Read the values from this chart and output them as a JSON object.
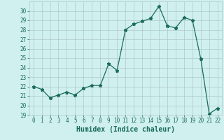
{
  "title": "",
  "xlabel": "Humidex (Indice chaleur)",
  "x": [
    0,
    1,
    2,
    3,
    4,
    5,
    6,
    7,
    8,
    9,
    10,
    11,
    12,
    13,
    14,
    15,
    16,
    17,
    18,
    19,
    20,
    21,
    22
  ],
  "y": [
    22.0,
    21.7,
    20.8,
    21.1,
    21.4,
    21.1,
    21.8,
    22.1,
    22.1,
    24.4,
    23.7,
    28.0,
    28.6,
    28.9,
    29.2,
    30.5,
    28.4,
    28.2,
    29.3,
    29.0,
    24.9,
    19.1,
    19.7
  ],
  "line_color": "#1a6b5a",
  "marker": "*",
  "marker_size": 3.5,
  "bg_color": "#cff0ee",
  "grid_color": "#b0c8c5",
  "ylim": [
    19,
    31
  ],
  "yticks": [
    19,
    20,
    21,
    22,
    23,
    24,
    25,
    26,
    27,
    28,
    29,
    30
  ],
  "xticks": [
    0,
    1,
    2,
    3,
    4,
    5,
    6,
    7,
    8,
    9,
    10,
    11,
    12,
    13,
    14,
    15,
    16,
    17,
    18,
    19,
    20,
    21,
    22
  ],
  "tick_fontsize": 5.5,
  "xlabel_fontsize": 7,
  "label_color": "#1a6b5a"
}
